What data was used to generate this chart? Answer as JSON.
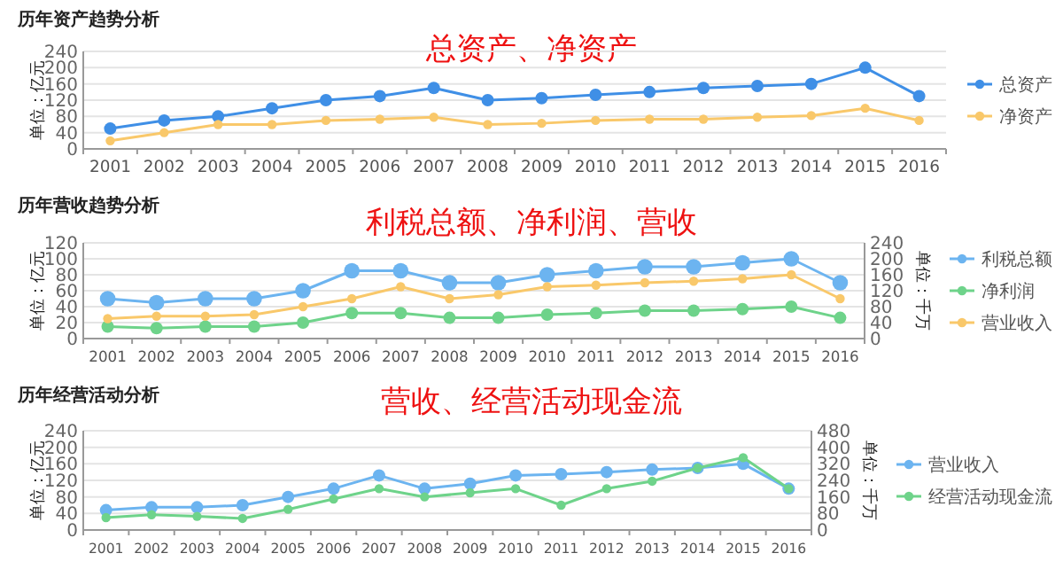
{
  "chart_data": [
    {
      "type": "line",
      "title": "历年资产趋势分析",
      "subtitle": "总资产、净资产",
      "ylabel": "单位：亿元",
      "categories": [
        "2001",
        "2002",
        "2003",
        "2004",
        "2005",
        "2006",
        "2007",
        "2008",
        "2009",
        "2010",
        "2011",
        "2012",
        "2013",
        "2014",
        "2015",
        "2016"
      ],
      "ylim": [
        0,
        240
      ],
      "yticks": [
        0,
        40,
        80,
        120,
        160,
        200,
        240
      ],
      "grid": "y",
      "legend": "right",
      "marker": "circle",
      "series": [
        {
          "name": "总资产",
          "color": "#3f8fe6",
          "values": [
            50,
            70,
            80,
            100,
            120,
            130,
            150,
            120,
            125,
            133,
            140,
            150,
            155,
            160,
            200,
            130
          ]
        },
        {
          "name": "净资产",
          "color": "#f9c86a",
          "values": [
            20,
            40,
            60,
            60,
            70,
            73,
            78,
            60,
            63,
            70,
            73,
            73,
            78,
            82,
            100,
            70
          ]
        }
      ]
    },
    {
      "type": "line",
      "title": "历年营收趋势分析",
      "subtitle": "利税总额、净利润、营收",
      "ylabel": "单位：亿元",
      "y2label": "单位：千万",
      "categories": [
        "2001",
        "2002",
        "2003",
        "2004",
        "2005",
        "2006",
        "2007",
        "2008",
        "2009",
        "2010",
        "2011",
        "2012",
        "2013",
        "2014",
        "2015",
        "2016"
      ],
      "ylim": [
        0,
        120
      ],
      "yticks": [
        0,
        20,
        40,
        60,
        80,
        100,
        120
      ],
      "y2lim": [
        0,
        240
      ],
      "y2ticks": [
        0,
        40,
        80,
        120,
        160,
        200,
        240
      ],
      "grid": "y",
      "legend": "right",
      "marker": "circle",
      "series": [
        {
          "name": "利税总额",
          "color": "#6cb4f0",
          "values": [
            50,
            45,
            50,
            50,
            60,
            85,
            85,
            70,
            70,
            80,
            85,
            90,
            90,
            95,
            100,
            70
          ]
        },
        {
          "name": "净利润",
          "color": "#6ed38a",
          "values": [
            15,
            13,
            15,
            15,
            20,
            32,
            32,
            26,
            26,
            30,
            32,
            35,
            35,
            37,
            40,
            26
          ]
        },
        {
          "name": "营业收入",
          "color": "#f9c86a",
          "axis": "y2",
          "values": [
            50,
            56,
            56,
            60,
            80,
            100,
            130,
            100,
            110,
            130,
            134,
            140,
            144,
            150,
            160,
            100
          ]
        }
      ]
    },
    {
      "type": "line",
      "title": "历年经营活动分析",
      "subtitle": "营收、经营活动现金流",
      "ylabel": "单位：亿元",
      "y2label": "单位：千万",
      "categories": [
        "2001",
        "2002",
        "2003",
        "2004",
        "2005",
        "2006",
        "2007",
        "2008",
        "2009",
        "2010",
        "2011",
        "2012",
        "2013",
        "2014",
        "2015",
        "2016"
      ],
      "ylim": [
        0,
        240
      ],
      "yticks": [
        0,
        40,
        80,
        120,
        160,
        200,
        240
      ],
      "y2lim": [
        0,
        480
      ],
      "y2ticks": [
        0,
        80,
        160,
        240,
        320,
        400,
        480
      ],
      "grid": "y",
      "legend": "right",
      "marker": "circle",
      "series": [
        {
          "name": "营业收入",
          "color": "#6cb4f0",
          "values": [
            48,
            55,
            55,
            60,
            80,
            100,
            132,
            100,
            112,
            132,
            135,
            140,
            146,
            150,
            160,
            100
          ]
        },
        {
          "name": "经营活动现金流",
          "color": "#6ed38a",
          "axis": "y2",
          "values": [
            60,
            74,
            66,
            56,
            100,
            150,
            200,
            160,
            180,
            200,
            120,
            200,
            236,
            300,
            350,
            200
          ]
        }
      ]
    }
  ]
}
